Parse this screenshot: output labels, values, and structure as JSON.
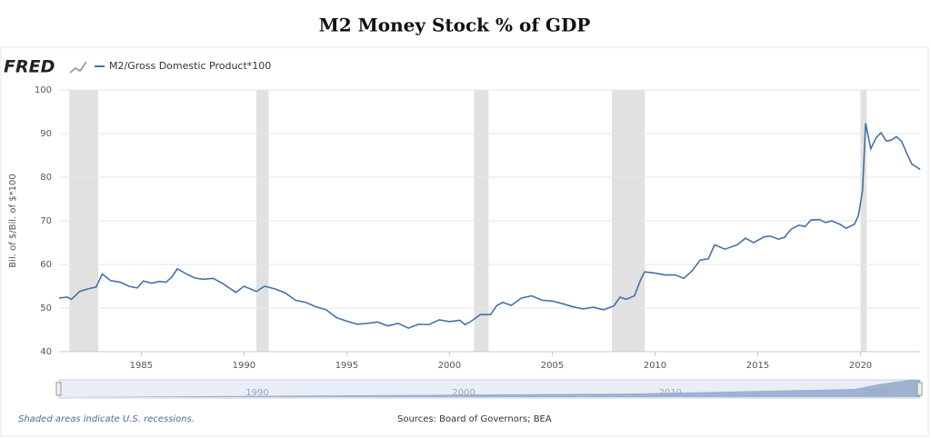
{
  "chart_data": {
    "type": "line",
    "title": "M2 Money Stock % of GDP",
    "logo": "FRED",
    "ylabel": "Bil. of $/Bil. of $*100",
    "xlim": [
      1981,
      2022.9
    ],
    "ylim": [
      40,
      100
    ],
    "xticks": [
      1985,
      1990,
      1995,
      2000,
      2005,
      2010,
      2015,
      2020
    ],
    "yticks": [
      40,
      50,
      60,
      70,
      80,
      90,
      100
    ],
    "grid": true,
    "recessions": [
      [
        1981.5,
        1982.9
      ],
      [
        1990.6,
        1991.2
      ],
      [
        2001.2,
        2001.9
      ],
      [
        2007.9,
        2009.5
      ],
      [
        2020.0,
        2020.3
      ]
    ],
    "x": [
      1981,
      1981.4,
      1981.6,
      1982,
      1982.4,
      1982.8,
      1983.1,
      1983.5,
      1984,
      1984.4,
      1984.8,
      1985.1,
      1985.5,
      1985.9,
      1986.2,
      1986.5,
      1986.75,
      1987.2,
      1987.6,
      1988,
      1988.5,
      1989,
      1989.6,
      1990,
      1990.6,
      1991,
      1991.5,
      1992,
      1992.5,
      1993,
      1993.5,
      1994,
      1994.5,
      1995,
      1995.5,
      1996,
      1996.5,
      1997,
      1997.5,
      1998,
      1998.5,
      1999,
      1999.5,
      2000,
      2000.5,
      2000.75,
      2001,
      2001.5,
      2002,
      2002.3,
      2002.6,
      2003,
      2003.5,
      2004,
      2004.5,
      2005,
      2005.5,
      2006,
      2006.5,
      2007,
      2007.5,
      2008,
      2008.3,
      2008.6,
      2009,
      2009.3,
      2009.5,
      2010,
      2010.5,
      2011,
      2011.4,
      2011.8,
      2012.2,
      2012.6,
      2012.9,
      2013.4,
      2014,
      2014.4,
      2014.8,
      2015.3,
      2015.6,
      2016,
      2016.3,
      2016.6,
      2017,
      2017.3,
      2017.6,
      2018,
      2018.3,
      2018.6,
      2019,
      2019.3,
      2019.7,
      2019.9,
      2020.1,
      2020.25,
      2020.5,
      2020.75,
      2021,
      2021.25,
      2021.5,
      2021.75,
      2022,
      2022.25,
      2022.5,
      2022.9
    ],
    "series": [
      {
        "name": "M2/Gross Domestic Product*100",
        "color": "#4572a7",
        "values": [
          52.3,
          52.5,
          52.0,
          53.8,
          54.4,
          54.8,
          57.8,
          56.3,
          55.9,
          55.0,
          54.6,
          56.2,
          55.7,
          56.1,
          55.9,
          57.2,
          59.0,
          57.8,
          56.9,
          56.6,
          56.8,
          55.5,
          53.6,
          55.0,
          53.8,
          55.0,
          54.4,
          53.5,
          51.8,
          51.3,
          50.3,
          49.6,
          47.8,
          47.0,
          46.3,
          46.5,
          46.8,
          45.9,
          46.5,
          45.4,
          46.3,
          46.2,
          47.3,
          46.9,
          47.2,
          46.2,
          46.8,
          48.5,
          48.5,
          50.6,
          51.3,
          50.6,
          52.3,
          52.8,
          51.8,
          51.6,
          51.0,
          50.3,
          49.8,
          50.2,
          49.6,
          50.5,
          52.5,
          52.0,
          52.8,
          56.5,
          58.3,
          58.0,
          57.6,
          57.6,
          56.8,
          58.5,
          61.0,
          61.3,
          64.5,
          63.5,
          64.5,
          66.0,
          65.0,
          66.3,
          66.5,
          65.8,
          66.2,
          68.0,
          69.0,
          68.7,
          70.2,
          70.3,
          69.6,
          70.0,
          69.2,
          68.3,
          69.2,
          71.2,
          77.0,
          92.4,
          86.5,
          89.0,
          90.2,
          88.3,
          88.5,
          89.3,
          88.2,
          85.5,
          83.0,
          81.8
        ]
      }
    ],
    "navigator": {
      "xlim": [
        1980.4,
        2022.1
      ],
      "xticks": [
        1990,
        2000,
        2010,
        2020
      ]
    },
    "note": "Shaded areas indicate U.S. recessions.",
    "source": "Sources: Board of Governors; BEA"
  }
}
